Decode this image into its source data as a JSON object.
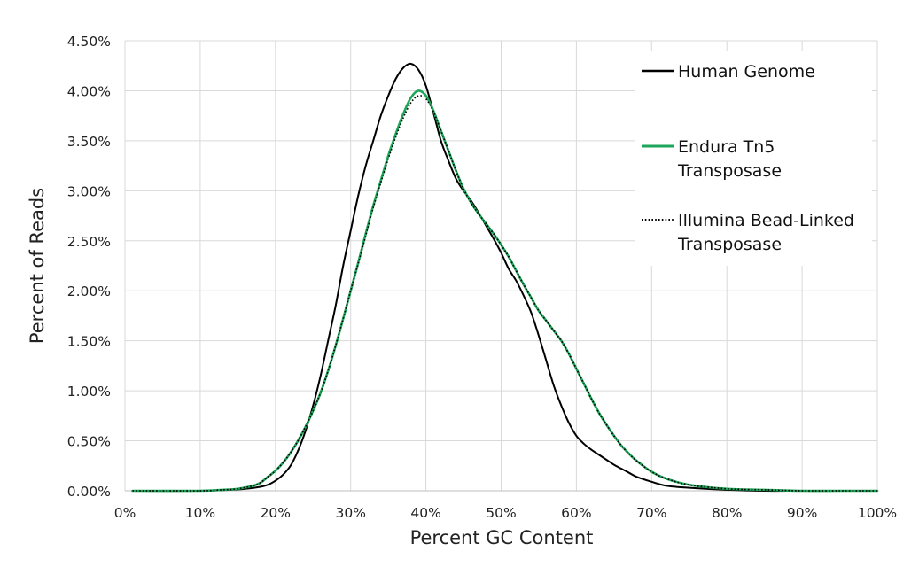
{
  "chart_data": {
    "type": "line",
    "title": "",
    "xlabel": "Percent GC Content",
    "ylabel": "Percent of Reads",
    "xlim": [
      0,
      100
    ],
    "ylim": [
      0,
      4.5
    ],
    "x_ticks": [
      0,
      10,
      20,
      30,
      40,
      50,
      60,
      70,
      80,
      90,
      100
    ],
    "x_tick_labels": [
      "0%",
      "10%",
      "20%",
      "30%",
      "40%",
      "50%",
      "60%",
      "70%",
      "80%",
      "90%",
      "100%"
    ],
    "y_ticks": [
      0,
      0.5,
      1,
      1.5,
      2,
      2.5,
      3,
      3.5,
      4,
      4.5
    ],
    "y_tick_labels": [
      "0.00%",
      "0.50%",
      "1.00%",
      "1.50%",
      "2.00%",
      "2.50%",
      "3.00%",
      "3.50%",
      "4.00%",
      "4.50%"
    ],
    "grid": true,
    "legend_position": "top-right",
    "series": [
      {
        "name": "Human Genome",
        "color": "#000000",
        "dash": "solid",
        "x": [
          1,
          10,
          14,
          16,
          18,
          19,
          20,
          21,
          22,
          23,
          24,
          25,
          26,
          27,
          28,
          29,
          30,
          31,
          32,
          33,
          34,
          35,
          36,
          37,
          38,
          39,
          40,
          41,
          42,
          43,
          44,
          45,
          46,
          47,
          48,
          49,
          50,
          51,
          52,
          53,
          54,
          55,
          56,
          57,
          58,
          59,
          60,
          61,
          62,
          63,
          64,
          65,
          66,
          67,
          68,
          70,
          72,
          75,
          80,
          85,
          90,
          95,
          100
        ],
        "y": [
          0.0,
          0.0,
          0.01,
          0.02,
          0.04,
          0.06,
          0.1,
          0.16,
          0.25,
          0.4,
          0.6,
          0.85,
          1.15,
          1.5,
          1.85,
          2.25,
          2.6,
          2.95,
          3.25,
          3.5,
          3.75,
          3.95,
          4.12,
          4.23,
          4.27,
          4.21,
          4.05,
          3.78,
          3.5,
          3.3,
          3.12,
          3.0,
          2.9,
          2.78,
          2.65,
          2.52,
          2.38,
          2.22,
          2.1,
          1.95,
          1.78,
          1.55,
          1.3,
          1.05,
          0.85,
          0.68,
          0.55,
          0.47,
          0.41,
          0.36,
          0.31,
          0.26,
          0.22,
          0.18,
          0.14,
          0.09,
          0.05,
          0.03,
          0.01,
          0.0,
          0.0,
          0.0,
          0.0
        ]
      },
      {
        "name": "Endura Tn5\nTransposase",
        "color": "#1ea65a",
        "dash": "solid",
        "x": [
          1,
          10,
          13,
          15,
          17,
          18,
          19,
          20,
          21,
          22,
          23,
          24,
          25,
          26,
          27,
          28,
          29,
          30,
          31,
          32,
          33,
          34,
          35,
          36,
          37,
          38,
          39,
          40,
          41,
          42,
          43,
          44,
          45,
          46,
          47,
          48,
          49,
          50,
          51,
          52,
          53,
          54,
          55,
          56,
          57,
          58,
          59,
          60,
          61,
          62,
          63,
          64,
          65,
          66,
          67,
          68,
          70,
          72,
          75,
          80,
          85,
          90,
          95,
          100
        ],
        "y": [
          0.0,
          0.0,
          0.01,
          0.02,
          0.05,
          0.08,
          0.14,
          0.2,
          0.28,
          0.38,
          0.5,
          0.64,
          0.8,
          0.98,
          1.2,
          1.45,
          1.72,
          2.0,
          2.28,
          2.57,
          2.85,
          3.1,
          3.35,
          3.57,
          3.77,
          3.93,
          4.0,
          3.95,
          3.8,
          3.6,
          3.4,
          3.2,
          3.02,
          2.88,
          2.77,
          2.67,
          2.57,
          2.46,
          2.34,
          2.2,
          2.06,
          1.93,
          1.8,
          1.7,
          1.6,
          1.5,
          1.37,
          1.22,
          1.07,
          0.92,
          0.78,
          0.66,
          0.55,
          0.45,
          0.37,
          0.3,
          0.19,
          0.12,
          0.06,
          0.02,
          0.01,
          0.0,
          0.0,
          0.0
        ]
      },
      {
        "name": "Illumina Bead-Linked\nTransposase",
        "color": "#000000",
        "dash": "dotted",
        "x": [
          1,
          10,
          13,
          15,
          17,
          18,
          19,
          20,
          21,
          22,
          23,
          24,
          25,
          26,
          27,
          28,
          29,
          30,
          31,
          32,
          33,
          34,
          35,
          36,
          37,
          38,
          39,
          40,
          41,
          42,
          43,
          44,
          45,
          46,
          47,
          48,
          49,
          50,
          51,
          52,
          53,
          54,
          55,
          56,
          57,
          58,
          59,
          60,
          61,
          62,
          63,
          64,
          65,
          66,
          67,
          68,
          70,
          72,
          75,
          80,
          85,
          90,
          95,
          100
        ],
        "y": [
          0.0,
          0.0,
          0.01,
          0.02,
          0.05,
          0.08,
          0.14,
          0.2,
          0.28,
          0.38,
          0.5,
          0.64,
          0.8,
          0.98,
          1.2,
          1.45,
          1.72,
          2.0,
          2.27,
          2.55,
          2.83,
          3.08,
          3.32,
          3.54,
          3.73,
          3.88,
          3.95,
          3.92,
          3.79,
          3.6,
          3.4,
          3.2,
          3.02,
          2.88,
          2.77,
          2.67,
          2.57,
          2.46,
          2.34,
          2.2,
          2.06,
          1.93,
          1.8,
          1.7,
          1.6,
          1.5,
          1.37,
          1.22,
          1.07,
          0.92,
          0.78,
          0.66,
          0.55,
          0.45,
          0.37,
          0.3,
          0.19,
          0.12,
          0.06,
          0.02,
          0.01,
          0.0,
          0.0,
          0.0
        ]
      }
    ]
  }
}
